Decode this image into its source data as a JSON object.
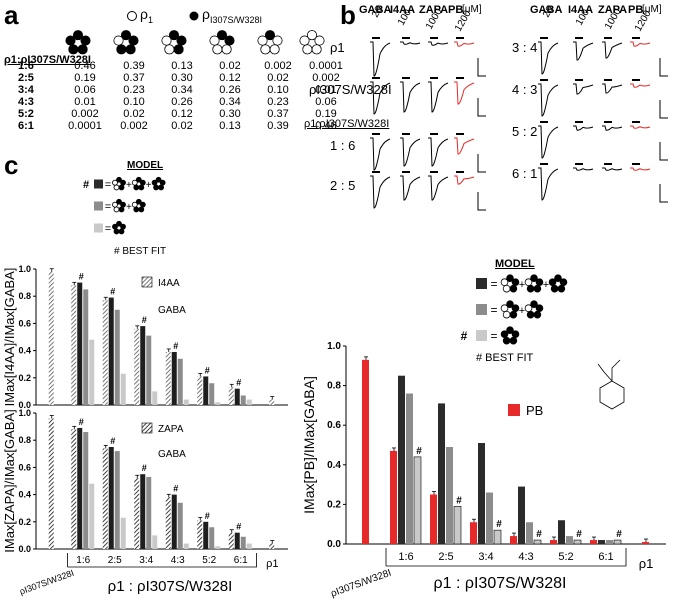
{
  "panel_labels": {
    "a": "a",
    "b": "b",
    "c": "c"
  },
  "panel_a": {
    "legend_wt": "ρ",
    "legend_wt_sub": "1",
    "legend_mut": "ρ",
    "legend_mut_sub": "I307S/W328I",
    "row_header": "ρ1:ρI307S/W328I",
    "rows": [
      {
        "ratio": "1:6",
        "values": [
          "0.46",
          "0.39",
          "0.13",
          "0.02",
          "0.002",
          "0.0001"
        ]
      },
      {
        "ratio": "2:5",
        "values": [
          "0.19",
          "0.37",
          "0.30",
          "0.12",
          "0.02",
          "0.002"
        ]
      },
      {
        "ratio": "3:4",
        "values": [
          "0.06",
          "0.23",
          "0.34",
          "0.26",
          "0.10",
          "0.01"
        ]
      },
      {
        "ratio": "4:3",
        "values": [
          "0.01",
          "0.10",
          "0.26",
          "0.34",
          "0.23",
          "0.06"
        ]
      },
      {
        "ratio": "5:2",
        "values": [
          "0.002",
          "0.02",
          "0.12",
          "0.30",
          "0.37",
          "0.19"
        ]
      },
      {
        "ratio": "6:1",
        "values": [
          "0.0001",
          "0.002",
          "0.02",
          "0.13",
          "0.39",
          "0.46"
        ]
      }
    ]
  },
  "panel_b": {
    "col_headers": [
      "GABA",
      "I4AA",
      "ZAPA",
      "PB"
    ],
    "conc_units": "[μM]",
    "concs": [
      "20",
      "100",
      "1000",
      "1200"
    ],
    "left_rows": [
      "ρ1",
      "ρI307S/W328I",
      "ρ1:ρI307S/W328I",
      "1 : 6",
      "2 : 5"
    ],
    "right_rows": [
      "3 : 4",
      "4 : 3",
      "5 : 2",
      "6 : 1"
    ]
  },
  "panel_c_left": {
    "model_title": "MODEL",
    "best_fit": "# BEST FIT",
    "ylabel_top": "IMax[I4AA]/IMax[GABA]",
    "ylabel_bottom": "IMax[ZAPA]/IMax[GABA]",
    "legend_top": [
      "I4AA",
      "GABA"
    ],
    "legend_bottom": [
      "ZAPA",
      "GABA"
    ],
    "yticks": [
      "0.0",
      "0.2",
      "0.4",
      "0.6",
      "0.8",
      "1.0"
    ],
    "x_groups": [
      "1:6",
      "2:5",
      "3:4",
      "4:3",
      "5:2",
      "6:1"
    ],
    "x_left": "ρI307S/W328I",
    "x_right": "ρ1",
    "x_axis_title": "ρ1 : ρI307S/W328I"
  },
  "panel_c_right": {
    "model_title": "MODEL",
    "best_fit": "# BEST FIT",
    "ylabel": "IMax[PB]/IMax[GABA]",
    "legend": "PB",
    "yticks": [
      "0.0",
      "0.2",
      "0.4",
      "0.6",
      "0.8",
      "1.0"
    ],
    "x_groups": [
      "1:6",
      "2:5",
      "3:4",
      "4:3",
      "5:2",
      "6:1"
    ],
    "x_left": "ρI307S/W328I",
    "x_right": "ρ1",
    "x_axis_title": "ρ1 : ρI307S/W328I"
  },
  "chart_data": [
    {
      "type": "bar",
      "panel": "c-left-top",
      "ylabel": "IMax[I4AA]/IMax[GABA]",
      "ylim": [
        0,
        1.0
      ],
      "categories": [
        "ρI307S/W328I",
        "1:6",
        "2:5",
        "3:4",
        "4:3",
        "5:2",
        "6:1",
        "ρ1"
      ],
      "series": [
        {
          "name": "I4AA",
          "values": [
            0.98,
            0.88,
            0.77,
            0.56,
            0.39,
            0.21,
            0.13,
            0.04
          ]
        },
        {
          "values": [
            null,
            0.9,
            0.79,
            0.58,
            0.39,
            0.21,
            0.12,
            null
          ]
        },
        {
          "values": [
            null,
            0.85,
            0.7,
            0.51,
            0.34,
            0.16,
            0.07,
            null
          ]
        },
        {
          "values": [
            null,
            0.48,
            0.23,
            0.1,
            0.04,
            0.02,
            0.04,
            null
          ]
        }
      ]
    },
    {
      "type": "bar",
      "panel": "c-left-bottom",
      "ylabel": "IMax[ZAPA]/IMax[GABA]",
      "ylim": [
        0,
        1.0
      ],
      "categories": [
        "ρI307S/W328I",
        "1:6",
        "2:5",
        "3:4",
        "4:3",
        "5:2",
        "6:1",
        "ρ1"
      ],
      "series": [
        {
          "name": "ZAPA",
          "values": [
            0.96,
            0.88,
            0.74,
            0.52,
            0.38,
            0.21,
            0.12,
            0.04
          ]
        },
        {
          "values": [
            null,
            0.89,
            0.75,
            0.55,
            0.4,
            0.2,
            0.12,
            null
          ]
        },
        {
          "values": [
            null,
            0.86,
            0.72,
            0.53,
            0.34,
            0.16,
            0.09,
            null
          ]
        },
        {
          "values": [
            null,
            0.48,
            0.23,
            0.1,
            0.04,
            0.02,
            0.04,
            null
          ]
        }
      ]
    },
    {
      "type": "bar",
      "panel": "c-right",
      "ylabel": "IMax[PB]/IMax[GABA]",
      "ylim": [
        0,
        1.0
      ],
      "categories": [
        "ρI307S/W328I",
        "1:6",
        "2:5",
        "3:4",
        "4:3",
        "5:2",
        "6:1",
        "ρ1"
      ],
      "series": [
        {
          "name": "PB",
          "values": [
            0.93,
            0.47,
            0.25,
            0.11,
            0.04,
            0.02,
            0.02,
            0.01
          ]
        },
        {
          "values": [
            null,
            0.85,
            0.71,
            0.51,
            0.29,
            0.12,
            0.02,
            null
          ]
        },
        {
          "values": [
            null,
            0.76,
            0.49,
            0.26,
            0.11,
            0.04,
            0.02,
            null
          ]
        },
        {
          "values": [
            null,
            0.44,
            0.19,
            0.07,
            0.02,
            0.02,
            0.02,
            null
          ]
        }
      ],
      "colors": {
        "PB": "#e8292a",
        "three_state": "#2b2b2b",
        "two_state": "#8c8c8c",
        "one_state": "#c9c9c9"
      }
    }
  ]
}
